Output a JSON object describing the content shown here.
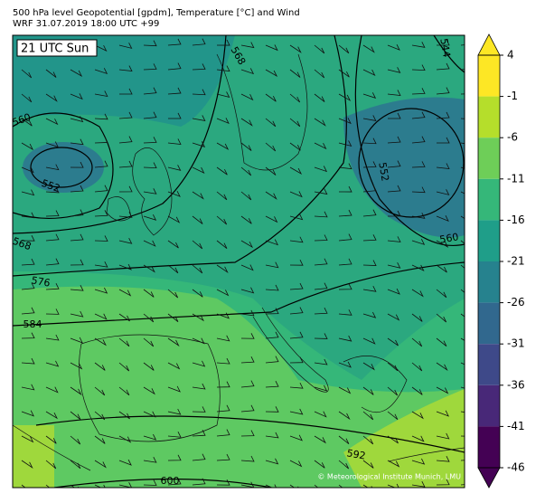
{
  "header": {
    "line1": "500 hPa level Geopotential [gpdm], Temperature [°C] and Wind",
    "line2": "WRF 31.07.2019 18:00 UTC +99"
  },
  "map": {
    "time_label": "21 UTC Sun",
    "copyright": "© Meteorological Institute Munich, LMU",
    "contour_labels": [
      560,
      552,
      568,
      576,
      584,
      592,
      600,
      568,
      544,
      552,
      560
    ]
  },
  "colorbar": {
    "ticks": [
      4,
      -1,
      -6,
      -11,
      -16,
      -21,
      -26,
      -31,
      -36,
      -41,
      -46
    ],
    "colors": [
      "#fde725",
      "#b5de2b",
      "#6ece58",
      "#35b779",
      "#1f9e89",
      "#26828e",
      "#31688e",
      "#3e4989",
      "#482878",
      "#440154"
    ]
  }
}
